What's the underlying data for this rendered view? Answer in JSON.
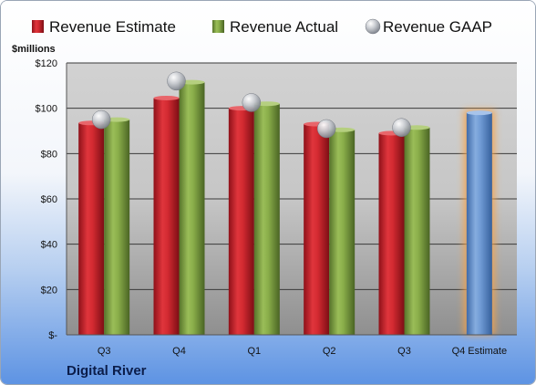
{
  "chart_data": {
    "type": "bar",
    "categories": [
      "Q3",
      "Q4",
      "Q1",
      "Q2",
      "Q3",
      "Q4 Estimate"
    ],
    "series": [
      {
        "name": "Revenue Estimate",
        "values": [
          93.5,
          104.5,
          100,
          93,
          89,
          null
        ],
        "color": "#c0212a"
      },
      {
        "name": "Revenue Actual",
        "values": [
          95,
          111.5,
          102,
          90.5,
          91.5,
          null
        ],
        "color": "#7a9d3c"
      },
      {
        "name": "Revenue GAAP",
        "values": [
          95,
          112,
          102.5,
          91,
          91.5,
          null
        ],
        "color": "#b7bcc4",
        "marker": "sphere"
      }
    ],
    "projection": {
      "category": "Q4 Estimate",
      "value": 98,
      "color": "#5d8cc8",
      "glow": "#f5a34a"
    },
    "ylabel": "$millions",
    "yticks": [
      {
        "value": 0,
        "label": "$-"
      },
      {
        "value": 20,
        "label": "$20"
      },
      {
        "value": 40,
        "label": "$40"
      },
      {
        "value": 60,
        "label": "$60"
      },
      {
        "value": 80,
        "label": "$80"
      },
      {
        "value": 100,
        "label": "$100"
      },
      {
        "value": 120,
        "label": "$120"
      }
    ],
    "ylim": [
      0,
      120
    ],
    "grid": true,
    "legend_position": "top"
  },
  "footer": {
    "company": "Digital River"
  }
}
